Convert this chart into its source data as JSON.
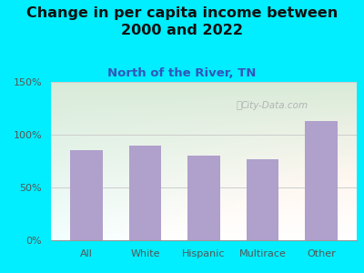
{
  "title": "Change in per capita income between\n2000 and 2022",
  "subtitle": "North of the River, TN",
  "categories": [
    "All",
    "White",
    "Hispanic",
    "Multirace",
    "Other"
  ],
  "values": [
    85,
    90,
    80,
    77,
    113
  ],
  "bar_color": "#b0a0cc",
  "background_outer": "#00eeff",
  "title_fontsize": 11.5,
  "subtitle_fontsize": 9.5,
  "subtitle_color": "#3355bb",
  "title_color": "#111111",
  "tick_label_color": "#555555",
  "ylim": [
    0,
    150
  ],
  "yticks": [
    0,
    50,
    100,
    150
  ],
  "ytick_labels": [
    "0%",
    "50%",
    "100%",
    "150%"
  ],
  "watermark": "City-Data.com"
}
